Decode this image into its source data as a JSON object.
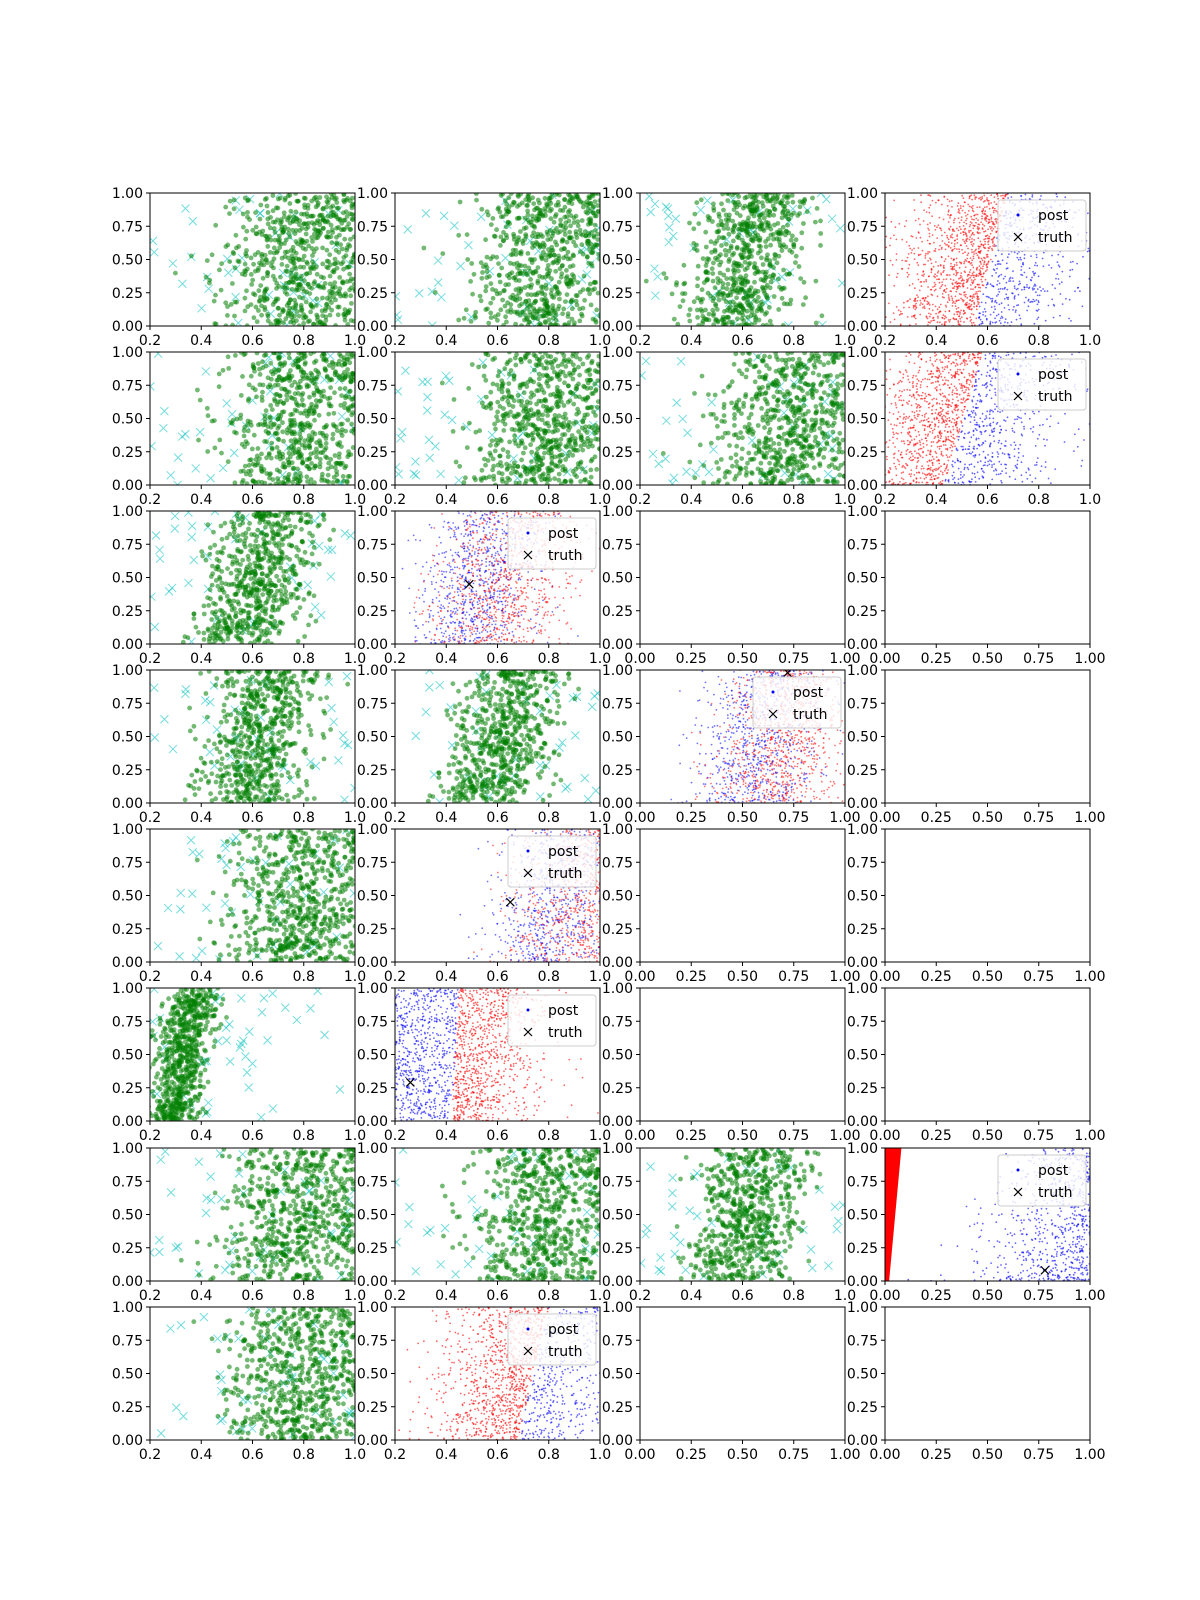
{
  "figure": {
    "rows": 8,
    "cols": 4,
    "colors": {
      "sample": "#008000",
      "cross": "#00bfbf",
      "post_a": "#ff0000",
      "post_b": "#0000ff",
      "truth": "#000000",
      "axis": "#000000"
    }
  },
  "chart_data": [
    {
      "row": 0,
      "col": 0,
      "type": "scatter",
      "pattern": "green_right",
      "xlim": [
        0.2,
        1.0
      ],
      "ylim": [
        0,
        1
      ],
      "xticks": [
        "0.2",
        "0.4",
        "0.6",
        "0.8",
        "1.0"
      ],
      "yticks": [
        "0.00",
        "0.25",
        "0.50",
        "0.75",
        "1.00"
      ],
      "legend": null
    },
    {
      "row": 0,
      "col": 1,
      "type": "scatter",
      "pattern": "green_right",
      "xlim": [
        0.2,
        1.0
      ],
      "ylim": [
        0,
        1
      ],
      "xticks": [
        "0.2",
        "0.4",
        "0.6",
        "0.8",
        "1.0"
      ],
      "yticks": [
        "0.00",
        "0.25",
        "0.50",
        "0.75",
        "1.00"
      ],
      "legend": null
    },
    {
      "row": 0,
      "col": 2,
      "type": "scatter",
      "pattern": "green_center",
      "xlim": [
        0.2,
        1.0
      ],
      "ylim": [
        0,
        1
      ],
      "xticks": [
        "0.2",
        "0.4",
        "0.6",
        "0.8",
        "1.0"
      ],
      "yticks": [
        "0.00",
        "0.25",
        "0.50",
        "0.75",
        "1.00"
      ],
      "legend": null
    },
    {
      "row": 0,
      "col": 3,
      "type": "scatter",
      "pattern": "split",
      "split_x0": 0.55,
      "split_x1": 0.68,
      "red_left": true,
      "truth": null,
      "xlim": [
        0.2,
        1.0
      ],
      "ylim": [
        0,
        1
      ],
      "xticks": [
        "0.2",
        "0.4",
        "0.6",
        "0.8",
        "1.0"
      ],
      "yticks": [
        "0.00",
        "0.25",
        "0.50",
        "0.75",
        "1.00"
      ],
      "legend": {
        "labels": [
          "post",
          "truth"
        ],
        "position": "upper right"
      }
    },
    {
      "row": 1,
      "col": 0,
      "type": "scatter",
      "pattern": "green_right",
      "xlim": [
        0.2,
        1.0
      ],
      "ylim": [
        0,
        1
      ],
      "xticks": [
        "0.2",
        "0.4",
        "0.6",
        "0.8",
        "1.0"
      ],
      "yticks": [
        "0.00",
        "0.25",
        "0.50",
        "0.75",
        "1.00"
      ],
      "legend": null
    },
    {
      "row": 1,
      "col": 1,
      "type": "scatter",
      "pattern": "green_right",
      "xlim": [
        0.2,
        1.0
      ],
      "ylim": [
        0,
        1
      ],
      "xticks": [
        "0.2",
        "0.4",
        "0.6",
        "0.8",
        "1.0"
      ],
      "yticks": [
        "0.00",
        "0.25",
        "0.50",
        "0.75",
        "1.00"
      ],
      "legend": null
    },
    {
      "row": 1,
      "col": 2,
      "type": "scatter",
      "pattern": "green_right",
      "xlim": [
        0.2,
        1.0
      ],
      "ylim": [
        0,
        1
      ],
      "xticks": [
        "0.2",
        "0.4",
        "0.6",
        "0.8",
        "1.0"
      ],
      "yticks": [
        "0.00",
        "0.25",
        "0.50",
        "0.75",
        "1.00"
      ],
      "legend": null
    },
    {
      "row": 1,
      "col": 3,
      "type": "scatter",
      "pattern": "split",
      "split_x0": 0.43,
      "split_x1": 0.58,
      "red_left": true,
      "truth": null,
      "xlim": [
        0.2,
        1.0
      ],
      "ylim": [
        0,
        1
      ],
      "xticks": [
        "0.2",
        "0.4",
        "0.6",
        "0.8",
        "1.0"
      ],
      "yticks": [
        "0.00",
        "0.25",
        "0.50",
        "0.75",
        "1.00"
      ],
      "legend": {
        "labels": [
          "post",
          "truth"
        ],
        "position": "upper right"
      }
    },
    {
      "row": 2,
      "col": 0,
      "type": "scatter",
      "pattern": "green_center",
      "xlim": [
        0.2,
        1.0
      ],
      "ylim": [
        0,
        1
      ],
      "xticks": [
        "0.2",
        "0.4",
        "0.6",
        "0.8",
        "1.0"
      ],
      "yticks": [
        "0.00",
        "0.25",
        "0.50",
        "0.75",
        "1.00"
      ],
      "legend": null
    },
    {
      "row": 2,
      "col": 1,
      "type": "scatter",
      "pattern": "mixed",
      "truth": [
        0.49,
        0.45
      ],
      "xlim": [
        0.2,
        1.0
      ],
      "ylim": [
        0,
        1
      ],
      "xticks": [
        "0.2",
        "0.4",
        "0.6",
        "0.8",
        "1.0"
      ],
      "yticks": [
        "0.00",
        "0.25",
        "0.50",
        "0.75",
        "1.00"
      ],
      "legend": {
        "labels": [
          "post",
          "truth"
        ],
        "position": "upper right"
      }
    },
    {
      "row": 2,
      "col": 2,
      "type": "empty",
      "xlim": [
        0,
        1
      ],
      "ylim": [
        0,
        1
      ],
      "xticks": [
        "0.00",
        "0.25",
        "0.50",
        "0.75",
        "1.00"
      ],
      "yticks": [
        "0.00",
        "0.25",
        "0.50",
        "0.75",
        "1.00"
      ],
      "legend": null
    },
    {
      "row": 2,
      "col": 3,
      "type": "empty",
      "xlim": [
        0,
        1
      ],
      "ylim": [
        0,
        1
      ],
      "xticks": [
        "0.00",
        "0.25",
        "0.50",
        "0.75",
        "1.00"
      ],
      "yticks": [
        "0.00",
        "0.25",
        "0.50",
        "0.75",
        "1.00"
      ],
      "legend": null
    },
    {
      "row": 3,
      "col": 0,
      "type": "scatter",
      "pattern": "green_center",
      "xlim": [
        0.2,
        1.0
      ],
      "ylim": [
        0,
        1
      ],
      "xticks": [
        "0.2",
        "0.4",
        "0.6",
        "0.8",
        "1.0"
      ],
      "yticks": [
        "0.00",
        "0.25",
        "0.50",
        "0.75",
        "1.00"
      ],
      "legend": null
    },
    {
      "row": 3,
      "col": 1,
      "type": "scatter",
      "pattern": "green_center",
      "xlim": [
        0.2,
        1.0
      ],
      "ylim": [
        0,
        1
      ],
      "xticks": [
        "0.2",
        "0.4",
        "0.6",
        "0.8",
        "1.0"
      ],
      "yticks": [
        "0.00",
        "0.25",
        "0.50",
        "0.75",
        "1.00"
      ],
      "legend": null
    },
    {
      "row": 3,
      "col": 2,
      "type": "scatter",
      "pattern": "mixed",
      "truth": [
        0.72,
        0.98
      ],
      "xlim": [
        0,
        1
      ],
      "ylim": [
        0,
        1
      ],
      "xticks": [
        "0.00",
        "0.25",
        "0.50",
        "0.75",
        "1.00"
      ],
      "yticks": [
        "0.00",
        "0.25",
        "0.50",
        "0.75",
        "1.00"
      ],
      "legend": {
        "labels": [
          "post",
          "truth"
        ],
        "position": "upper right"
      }
    },
    {
      "row": 3,
      "col": 3,
      "type": "empty",
      "xlim": [
        0,
        1
      ],
      "ylim": [
        0,
        1
      ],
      "xticks": [
        "0.00",
        "0.25",
        "0.50",
        "0.75",
        "1.00"
      ],
      "yticks": [
        "0.00",
        "0.25",
        "0.50",
        "0.75",
        "1.00"
      ],
      "legend": null
    },
    {
      "row": 4,
      "col": 0,
      "type": "scatter",
      "pattern": "green_right",
      "xlim": [
        0.2,
        1.0
      ],
      "ylim": [
        0,
        1
      ],
      "xticks": [
        "0.2",
        "0.4",
        "0.6",
        "0.8",
        "1.0"
      ],
      "yticks": [
        "0.00",
        "0.25",
        "0.50",
        "0.75",
        "1.00"
      ],
      "legend": null
    },
    {
      "row": 4,
      "col": 1,
      "type": "scatter",
      "pattern": "mixed_right",
      "truth": [
        0.65,
        0.45
      ],
      "xlim": [
        0.2,
        1.0
      ],
      "ylim": [
        0,
        1
      ],
      "xticks": [
        "0.2",
        "0.4",
        "0.6",
        "0.8",
        "1.0"
      ],
      "yticks": [
        "0.00",
        "0.25",
        "0.50",
        "0.75",
        "1.00"
      ],
      "legend": {
        "labels": [
          "post",
          "truth"
        ],
        "position": "upper right"
      }
    },
    {
      "row": 4,
      "col": 2,
      "type": "empty",
      "xlim": [
        0,
        1
      ],
      "ylim": [
        0,
        1
      ],
      "xticks": [
        "0.00",
        "0.25",
        "0.50",
        "0.75",
        "1.00"
      ],
      "yticks": [
        "0.00",
        "0.25",
        "0.50",
        "0.75",
        "1.00"
      ],
      "legend": null
    },
    {
      "row": 4,
      "col": 3,
      "type": "empty",
      "xlim": [
        0,
        1
      ],
      "ylim": [
        0,
        1
      ],
      "xticks": [
        "0.00",
        "0.25",
        "0.50",
        "0.75",
        "1.00"
      ],
      "yticks": [
        "0.00",
        "0.25",
        "0.50",
        "0.75",
        "1.00"
      ],
      "legend": null
    },
    {
      "row": 5,
      "col": 0,
      "type": "scatter",
      "pattern": "green_left",
      "xlim": [
        0.2,
        1.0
      ],
      "ylim": [
        0,
        1
      ],
      "xticks": [
        "0.2",
        "0.4",
        "0.6",
        "0.8",
        "1.0"
      ],
      "yticks": [
        "0.00",
        "0.25",
        "0.50",
        "0.75",
        "1.00"
      ],
      "legend": null
    },
    {
      "row": 5,
      "col": 1,
      "type": "scatter",
      "pattern": "split",
      "split_x0": 0.42,
      "split_x1": 0.45,
      "red_left": false,
      "truth": [
        0.26,
        0.29
      ],
      "xlim": [
        0.2,
        1.0
      ],
      "ylim": [
        0,
        1
      ],
      "xticks": [
        "0.2",
        "0.4",
        "0.6",
        "0.8",
        "1.0"
      ],
      "yticks": [
        "0.00",
        "0.25",
        "0.50",
        "0.75",
        "1.00"
      ],
      "legend": {
        "labels": [
          "post",
          "truth"
        ],
        "position": "upper right"
      }
    },
    {
      "row": 5,
      "col": 2,
      "type": "empty",
      "xlim": [
        0,
        1
      ],
      "ylim": [
        0,
        1
      ],
      "xticks": [
        "0.00",
        "0.25",
        "0.50",
        "0.75",
        "1.00"
      ],
      "yticks": [
        "0.00",
        "0.25",
        "0.50",
        "0.75",
        "1.00"
      ],
      "legend": null
    },
    {
      "row": 5,
      "col": 3,
      "type": "empty",
      "xlim": [
        0,
        1
      ],
      "ylim": [
        0,
        1
      ],
      "xticks": [
        "0.00",
        "0.25",
        "0.50",
        "0.75",
        "1.00"
      ],
      "yticks": [
        "0.00",
        "0.25",
        "0.50",
        "0.75",
        "1.00"
      ],
      "legend": null
    },
    {
      "row": 6,
      "col": 0,
      "type": "scatter",
      "pattern": "green_right",
      "xlim": [
        0.2,
        1.0
      ],
      "ylim": [
        0,
        1
      ],
      "xticks": [
        "0.2",
        "0.4",
        "0.6",
        "0.8",
        "1.0"
      ],
      "yticks": [
        "0.00",
        "0.25",
        "0.50",
        "0.75",
        "1.00"
      ],
      "legend": null
    },
    {
      "row": 6,
      "col": 1,
      "type": "scatter",
      "pattern": "green_right",
      "xlim": [
        0.2,
        1.0
      ],
      "ylim": [
        0,
        1
      ],
      "xticks": [
        "0.2",
        "0.4",
        "0.6",
        "0.8",
        "1.0"
      ],
      "yticks": [
        "0.00",
        "0.25",
        "0.50",
        "0.75",
        "1.00"
      ],
      "legend": null
    },
    {
      "row": 6,
      "col": 2,
      "type": "scatter",
      "pattern": "green_center",
      "xlim": [
        0.2,
        1.0
      ],
      "ylim": [
        0,
        1
      ],
      "xticks": [
        "0.2",
        "0.4",
        "0.6",
        "0.8",
        "1.0"
      ],
      "yticks": [
        "0.00",
        "0.25",
        "0.50",
        "0.75",
        "1.00"
      ],
      "legend": null
    },
    {
      "row": 6,
      "col": 3,
      "type": "scatter",
      "pattern": "wedge",
      "truth": [
        0.78,
        0.08
      ],
      "xlim": [
        0,
        1
      ],
      "ylim": [
        0,
        1
      ],
      "xticks": [
        "0.00",
        "0.25",
        "0.50",
        "0.75",
        "1.00"
      ],
      "yticks": [
        "0.00",
        "0.25",
        "0.50",
        "0.75",
        "1.00"
      ],
      "legend": {
        "labels": [
          "post",
          "truth"
        ],
        "position": "upper right"
      }
    },
    {
      "row": 7,
      "col": 0,
      "type": "scatter",
      "pattern": "green_right",
      "xlim": [
        0.2,
        1.0
      ],
      "ylim": [
        0,
        1
      ],
      "xticks": [
        "0.2",
        "0.4",
        "0.6",
        "0.8",
        "1.0"
      ],
      "yticks": [
        "0.00",
        "0.25",
        "0.50",
        "0.75",
        "1.00"
      ],
      "legend": null
    },
    {
      "row": 7,
      "col": 1,
      "type": "scatter",
      "pattern": "split",
      "split_x0": 0.68,
      "split_x1": 0.8,
      "red_left": true,
      "truth": null,
      "xlim": [
        0.2,
        1.0
      ],
      "ylim": [
        0,
        1
      ],
      "xticks": [
        "0.2",
        "0.4",
        "0.6",
        "0.8",
        "1.0"
      ],
      "yticks": [
        "0.00",
        "0.25",
        "0.50",
        "0.75",
        "1.00"
      ],
      "legend": {
        "labels": [
          "post",
          "truth"
        ],
        "position": "upper right"
      }
    },
    {
      "row": 7,
      "col": 2,
      "type": "empty",
      "xlim": [
        0,
        1
      ],
      "ylim": [
        0,
        1
      ],
      "xticks": [
        "0.00",
        "0.25",
        "0.50",
        "0.75",
        "1.00"
      ],
      "yticks": [
        "0.00",
        "0.25",
        "0.50",
        "0.75",
        "1.00"
      ],
      "legend": null
    },
    {
      "row": 7,
      "col": 3,
      "type": "empty",
      "xlim": [
        0,
        1
      ],
      "ylim": [
        0,
        1
      ],
      "xticks": [
        "0.00",
        "0.25",
        "0.50",
        "0.75",
        "1.00"
      ],
      "yticks": [
        "0.00",
        "0.25",
        "0.50",
        "0.75",
        "1.00"
      ],
      "legend": null
    }
  ]
}
